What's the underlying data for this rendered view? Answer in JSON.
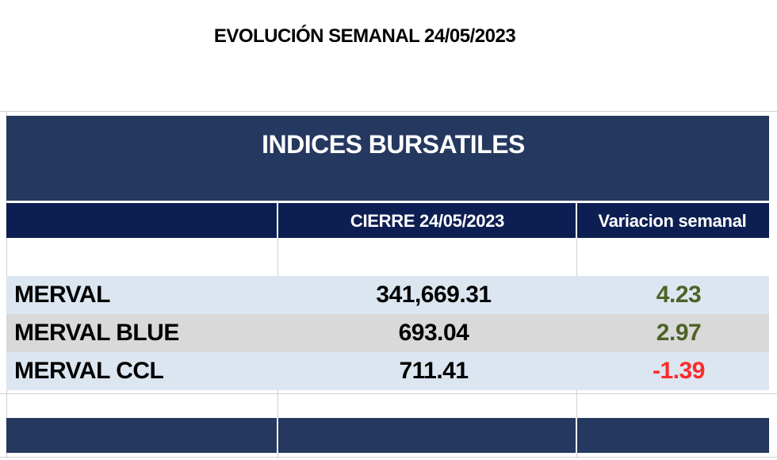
{
  "page_title": "EVOLUCIÓN SEMANAL 24/05/2023",
  "table": {
    "title": "INDICES BURSATILES",
    "columns": [
      "",
      "CIERRE 24/05/2023",
      "Variacion semanal"
    ],
    "rows": [
      {
        "name": "MERVAL",
        "close": "341,669.31",
        "change": "4.23",
        "change_color": "#4f6228"
      },
      {
        "name": "MERVAL BLUE",
        "close": "693.04",
        "change": "2.97",
        "change_color": "#4f6228"
      },
      {
        "name": "MERVAL CCL",
        "close": "711.41",
        "change": "-1.39",
        "change_color": "#ff2a2a"
      }
    ]
  },
  "colors": {
    "header_bg": "#25385f",
    "subheader_bg": "#0d1f52",
    "row_alt_blue": "#dce6f1",
    "row_alt_gray": "#d9d9d9"
  }
}
